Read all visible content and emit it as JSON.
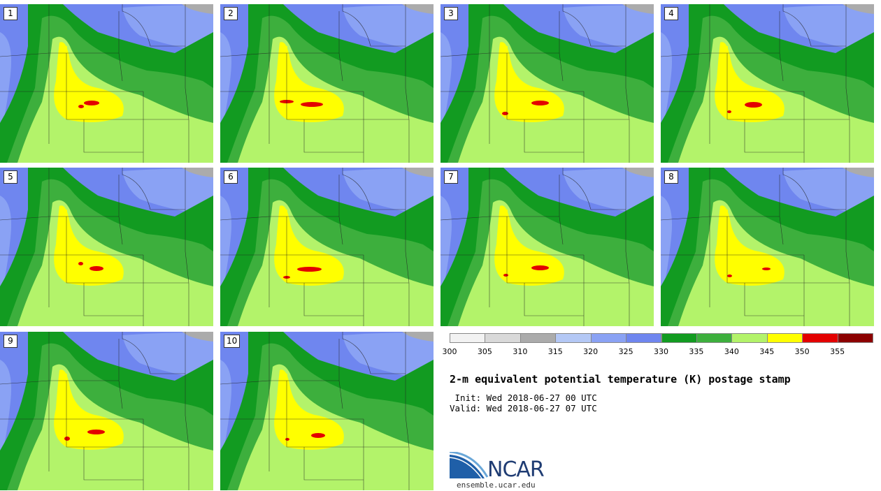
{
  "panels": [
    {
      "label": "1",
      "hot": [
        [
          120,
          144,
          22,
          7
        ],
        [
          112,
          150,
          8,
          5
        ]
      ]
    },
    {
      "label": "2",
      "hot": [
        [
          430,
          146,
          32,
          7
        ],
        [
          400,
          143,
          20,
          5
        ]
      ]
    },
    {
      "label": "3",
      "hot": [
        [
          760,
          144,
          25,
          7
        ],
        [
          718,
          160,
          9,
          5
        ]
      ]
    },
    {
      "label": "4",
      "hot": [
        [
          1065,
          146,
          25,
          8
        ],
        [
          1040,
          158,
          6,
          4
        ]
      ]
    },
    {
      "label": "5",
      "hot": [
        [
          128,
          381,
          20,
          7
        ],
        [
          112,
          375,
          7,
          5
        ]
      ]
    },
    {
      "label": "6",
      "hot": [
        [
          425,
          382,
          35,
          7
        ],
        [
          405,
          395,
          10,
          4
        ]
      ]
    },
    {
      "label": "7",
      "hot": [
        [
          760,
          380,
          25,
          7
        ],
        [
          720,
          392,
          7,
          4
        ]
      ]
    },
    {
      "label": "8",
      "hot": [
        [
          1090,
          383,
          12,
          4
        ],
        [
          1040,
          393,
          7,
          4
        ]
      ]
    },
    {
      "label": "9",
      "hot": [
        [
          125,
          615,
          25,
          7
        ],
        [
          92,
          625,
          8,
          6
        ]
      ]
    },
    {
      "label": "10",
      "hot": [
        [
          445,
          620,
          20,
          7
        ],
        [
          408,
          627,
          6,
          4
        ]
      ]
    }
  ],
  "colorbar": {
    "colors": [
      "#f2f2f2",
      "#d9d9d9",
      "#ababab",
      "#b4c8f5",
      "#8aa2f4",
      "#6f86ef",
      "#129b21",
      "#3daf3d",
      "#b3f36a",
      "#ffff00",
      "#e30000",
      "#8c0000"
    ],
    "ticks": [
      "300",
      "305",
      "310",
      "315",
      "320",
      "325",
      "330",
      "335",
      "340",
      "345",
      "350",
      "355"
    ]
  },
  "title": "2-m equivalent potential temperature (K) postage stamp",
  "init": " Init: Wed 2018-06-27 00 UTC",
  "valid": "Valid: Wed 2018-06-27 07 UTC",
  "logo": {
    "word": "NCAR",
    "url": "ensemble.ucar.edu"
  }
}
